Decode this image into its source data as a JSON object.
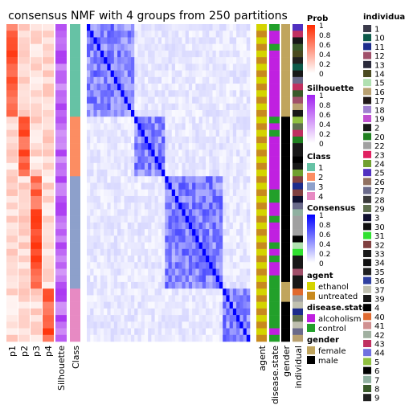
{
  "chart_data": {
    "type": "heatmap",
    "title": "consensus NMF with 4 groups from 250 partitions",
    "n_samples": 48,
    "class_sizes": [
      14,
      9,
      17,
      8
    ],
    "left_columns": [
      "p1",
      "p2",
      "p3",
      "p4",
      "Silhouette",
      "Class"
    ],
    "right_columns": [
      "agent",
      "disease.state",
      "gender",
      "individual"
    ],
    "legends": {
      "prob": {
        "title": "Prob",
        "ticks": [
          "1",
          "0.8",
          "0.6",
          "0.4",
          "0.2",
          "0"
        ],
        "low": "#ffffff",
        "high": "#ff2a00"
      },
      "silhouette": {
        "title": "Silhouette",
        "ticks": [
          "1",
          "0.8",
          "0.6",
          "0.4",
          "0.2",
          "0"
        ],
        "low": "#ffffff",
        "high": "#a020f0"
      },
      "class": {
        "title": "Class",
        "items": [
          {
            "label": "1",
            "color": "#66c2a5"
          },
          {
            "label": "2",
            "color": "#fc8d62"
          },
          {
            "label": "3",
            "color": "#8da0cb"
          },
          {
            "label": "4",
            "color": "#e78ac3"
          }
        ]
      },
      "consensus": {
        "title": "Consensus",
        "ticks": [
          "1",
          "0.8",
          "0.6",
          "0.4",
          "0.2",
          "0"
        ],
        "low": "#ffffff",
        "high": "#0000ff"
      },
      "agent": {
        "title": "agent",
        "items": [
          {
            "label": "ethanol",
            "color": "#d4d400"
          },
          {
            "label": "untreated",
            "color": "#c88a1e"
          }
        ]
      },
      "disease_state": {
        "title": "disease.state",
        "items": [
          {
            "label": "alcoholism",
            "color": "#c020e0"
          },
          {
            "label": "control",
            "color": "#22a02a"
          }
        ]
      },
      "gender": {
        "title": "gender",
        "items": [
          {
            "label": "female",
            "color": "#c0a55e"
          },
          {
            "label": "male",
            "color": "#000000"
          }
        ]
      },
      "individual": {
        "title": "individual",
        "items": [
          {
            "label": "1",
            "color": "#3a3a4a"
          },
          {
            "label": "10",
            "color": "#0d5a4a"
          },
          {
            "label": "11",
            "color": "#1c2c8c"
          },
          {
            "label": "12",
            "color": "#a0506a"
          },
          {
            "label": "13",
            "color": "#2a2a3a"
          },
          {
            "label": "14",
            "color": "#4a4a20"
          },
          {
            "label": "15",
            "color": "#b0e0b0"
          },
          {
            "label": "16",
            "color": "#b8a070"
          },
          {
            "label": "17",
            "color": "#201818"
          },
          {
            "label": "18",
            "color": "#a080d0"
          },
          {
            "label": "19",
            "color": "#c050d0"
          },
          {
            "label": "2",
            "color": "#181818"
          },
          {
            "label": "20",
            "color": "#208020"
          },
          {
            "label": "22",
            "color": "#a0a0a0"
          },
          {
            "label": "23",
            "color": "#e02060"
          },
          {
            "label": "24",
            "color": "#70a030"
          },
          {
            "label": "25",
            "color": "#5030c0"
          },
          {
            "label": "26",
            "color": "#907060"
          },
          {
            "label": "27",
            "color": "#6a6a8a"
          },
          {
            "label": "28",
            "color": "#3a3a3a"
          },
          {
            "label": "29",
            "color": "#607050"
          },
          {
            "label": "3",
            "color": "#101030"
          },
          {
            "label": "30",
            "color": "#101010"
          },
          {
            "label": "31",
            "color": "#30e030"
          },
          {
            "label": "32",
            "color": "#804040"
          },
          {
            "label": "33",
            "color": "#181818"
          },
          {
            "label": "34",
            "color": "#101010"
          },
          {
            "label": "35",
            "color": "#202020"
          },
          {
            "label": "36",
            "color": "#3040a0"
          },
          {
            "label": "37",
            "color": "#c0c0b0"
          },
          {
            "label": "39",
            "color": "#181818"
          },
          {
            "label": "4",
            "color": "#000000"
          },
          {
            "label": "40",
            "color": "#e06a30"
          },
          {
            "label": "41",
            "color": "#d09090"
          },
          {
            "label": "42",
            "color": "#a0b0a0"
          },
          {
            "label": "43",
            "color": "#c03060"
          },
          {
            "label": "44",
            "color": "#7070e0"
          },
          {
            "label": "5",
            "color": "#90c040"
          },
          {
            "label": "6",
            "color": "#000000"
          },
          {
            "label": "7",
            "color": "#90b0a0"
          },
          {
            "label": "8",
            "color": "#3a5a2a"
          },
          {
            "label": "9",
            "color": "#202020"
          }
        ]
      }
    }
  }
}
